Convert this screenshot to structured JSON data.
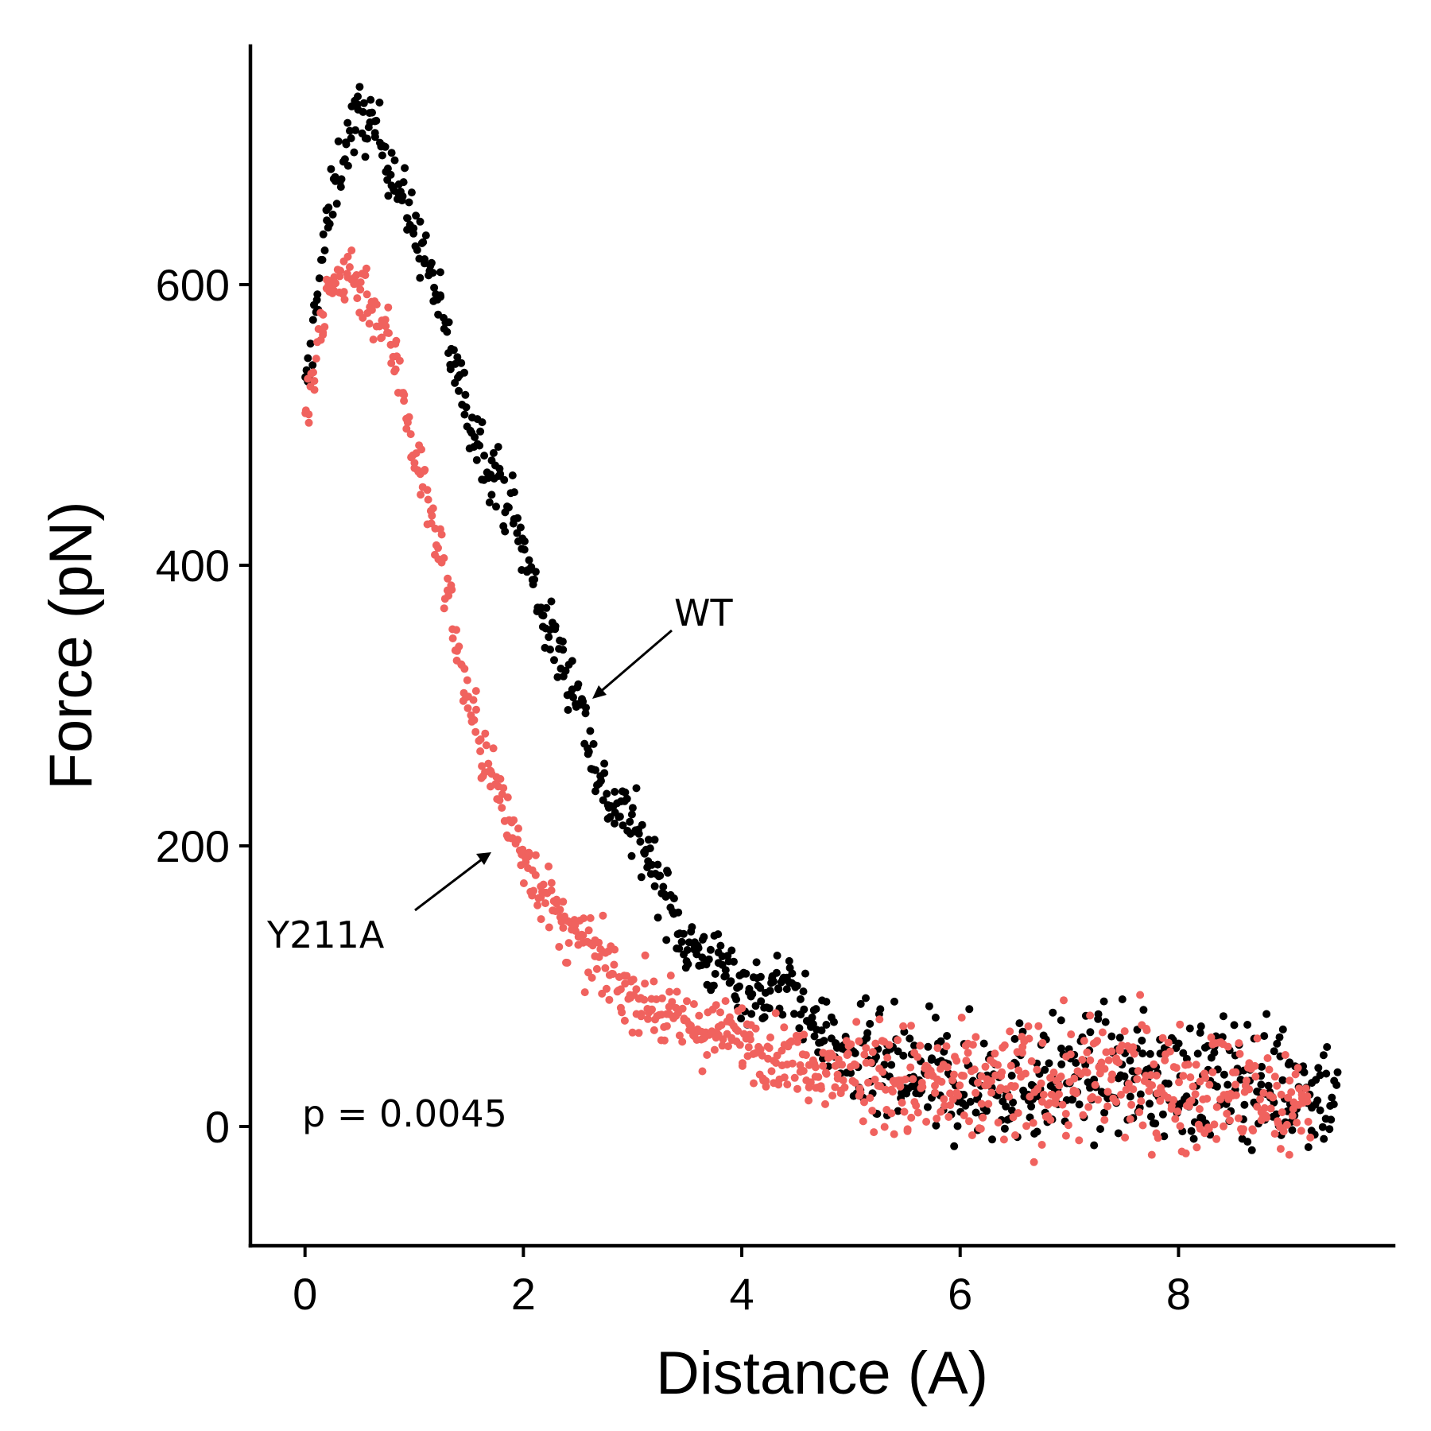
{
  "chart_data": {
    "type": "scatter",
    "title": "",
    "xlabel": "Distance (A)",
    "ylabel": "Force (pN)",
    "xlim": [
      -0.5,
      9.97
    ],
    "ylim": [
      -85,
      770
    ],
    "xticks": [
      0,
      2,
      4,
      6,
      8
    ],
    "yticks": [
      0,
      200,
      400,
      600
    ],
    "grid": false,
    "legend": "none",
    "colors": {
      "WT": "#000000",
      "Y211A": "#f0625e"
    },
    "series": [
      {
        "name": "WT",
        "color": "#000000",
        "noise": 12,
        "curve": [
          [
            0.0,
            520
          ],
          [
            0.05,
            545
          ],
          [
            0.1,
            590
          ],
          [
            0.2,
            640
          ],
          [
            0.3,
            680
          ],
          [
            0.4,
            705
          ],
          [
            0.5,
            720
          ],
          [
            0.6,
            715
          ],
          [
            0.7,
            700
          ],
          [
            0.8,
            685
          ],
          [
            0.9,
            660
          ],
          [
            1.0,
            640
          ],
          [
            1.1,
            620
          ],
          [
            1.2,
            595
          ],
          [
            1.3,
            560
          ],
          [
            1.4,
            535
          ],
          [
            1.5,
            505
          ],
          [
            1.6,
            490
          ],
          [
            1.7,
            470
          ],
          [
            1.8,
            455
          ],
          [
            1.9,
            440
          ],
          [
            2.0,
            410
          ],
          [
            2.1,
            385
          ],
          [
            2.2,
            360
          ],
          [
            2.3,
            340
          ],
          [
            2.4,
            325
          ],
          [
            2.5,
            310
          ],
          [
            2.6,
            275
          ],
          [
            2.7,
            245
          ],
          [
            2.8,
            230
          ],
          [
            2.9,
            225
          ],
          [
            3.0,
            215
          ],
          [
            3.1,
            200
          ],
          [
            3.2,
            185
          ],
          [
            3.3,
            165
          ],
          [
            3.4,
            145
          ],
          [
            3.5,
            130
          ],
          [
            3.6,
            125
          ],
          [
            3.7,
            118
          ],
          [
            3.8,
            115
          ],
          [
            3.9,
            108
          ],
          [
            4.0,
            100
          ],
          [
            4.1,
            96
          ],
          [
            4.2,
            95
          ],
          [
            4.3,
            98
          ],
          [
            4.4,
            100
          ],
          [
            4.5,
            95
          ],
          [
            4.6,
            80
          ],
          [
            4.7,
            70
          ],
          [
            4.8,
            62
          ],
          [
            5.0,
            45
          ],
          [
            5.2,
            40
          ],
          [
            5.5,
            35
          ],
          [
            6.0,
            30
          ],
          [
            6.5,
            32
          ],
          [
            7.0,
            35
          ],
          [
            7.5,
            38
          ],
          [
            8.0,
            32
          ],
          [
            8.5,
            35
          ],
          [
            9.0,
            30
          ],
          [
            9.45,
            25
          ]
        ]
      },
      {
        "name": "Y211A",
        "color": "#f0625e",
        "noise": 12,
        "curve": [
          [
            0.0,
            505
          ],
          [
            0.05,
            520
          ],
          [
            0.1,
            545
          ],
          [
            0.15,
            565
          ],
          [
            0.2,
            590
          ],
          [
            0.3,
            605
          ],
          [
            0.4,
            610
          ],
          [
            0.5,
            600
          ],
          [
            0.6,
            590
          ],
          [
            0.7,
            570
          ],
          [
            0.8,
            555
          ],
          [
            0.9,
            525
          ],
          [
            1.0,
            480
          ],
          [
            1.1,
            455
          ],
          [
            1.2,
            420
          ],
          [
            1.3,
            385
          ],
          [
            1.4,
            340
          ],
          [
            1.5,
            300
          ],
          [
            1.6,
            275
          ],
          [
            1.7,
            255
          ],
          [
            1.8,
            230
          ],
          [
            1.9,
            210
          ],
          [
            2.0,
            195
          ],
          [
            2.1,
            180
          ],
          [
            2.2,
            165
          ],
          [
            2.3,
            150
          ],
          [
            2.4,
            140
          ],
          [
            2.5,
            130
          ],
          [
            2.6,
            125
          ],
          [
            2.7,
            118
          ],
          [
            2.8,
            110
          ],
          [
            2.9,
            100
          ],
          [
            3.0,
            95
          ],
          [
            3.2,
            85
          ],
          [
            3.4,
            75
          ],
          [
            3.6,
            70
          ],
          [
            3.8,
            65
          ],
          [
            4.0,
            65
          ],
          [
            4.2,
            55
          ],
          [
            4.4,
            50
          ],
          [
            4.6,
            45
          ],
          [
            5.0,
            42
          ],
          [
            5.5,
            30
          ],
          [
            6.0,
            25
          ],
          [
            6.5,
            30
          ],
          [
            7.0,
            30
          ],
          [
            7.5,
            35
          ],
          [
            8.0,
            30
          ],
          [
            8.5,
            25
          ],
          [
            9.0,
            15
          ],
          [
            9.2,
            20
          ]
        ]
      }
    ],
    "annotations": [
      {
        "text": "WT",
        "series": "WT"
      },
      {
        "text": "Y211A",
        "series": "Y211A"
      },
      {
        "text": "p = 0.0045"
      }
    ]
  }
}
